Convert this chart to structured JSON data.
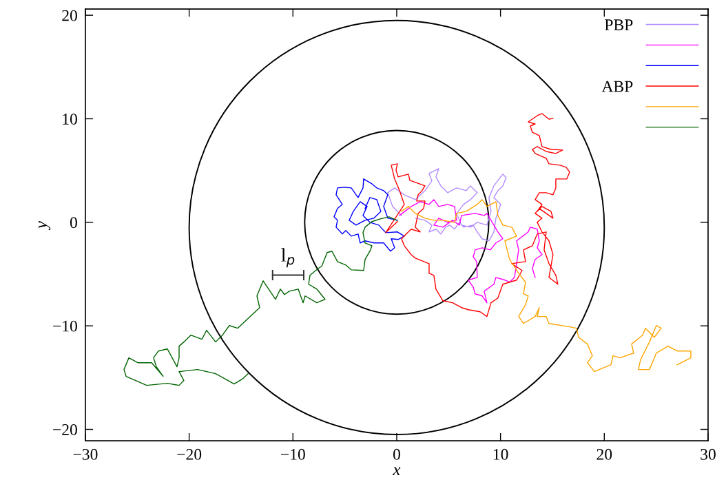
{
  "chart_data": {
    "type": "line",
    "xlabel": "x",
    "ylabel": "y",
    "xlim": [
      -30,
      30
    ],
    "ylim": [
      -21.1,
      20.6
    ],
    "xticks": [
      -30,
      -20,
      -10,
      0,
      10,
      20,
      30
    ],
    "yticks": [
      -20,
      -10,
      0,
      10,
      20
    ],
    "grid": false,
    "legend": "top right",
    "annotations": [
      {
        "text": "l$_{p}$",
        "x": -10.46,
        "y": -5.1
      }
    ],
    "series": [
      {
        "name": "PBP",
        "color": "#b28cff",
        "x": [
          0.46,
          -0.4,
          -0.86,
          -0.2,
          0.73,
          1.79,
          2.72,
          3.38,
          3.12,
          4.05,
          3.78,
          4.25,
          4.91,
          5.77,
          6.7,
          7.1,
          7.76,
          7.1,
          6.44,
          5.77,
          6.24,
          7.1,
          7.76,
          8.69,
          9.09,
          8.89,
          9.36,
          10.22,
          10.55,
          10.22,
          9.75,
          9.36,
          10.02,
          9.56,
          9.36,
          8.89,
          8.23,
          7.76,
          7.37,
          6.44,
          6.04,
          5.57,
          5.11,
          4.71,
          4.25,
          3.78,
          3.12,
          3.38,
          2.72,
          1.79
        ],
        "values": [
          0.66,
          1.53,
          2.86,
          3.32,
          2.66,
          2.19,
          3.06,
          3.99,
          4.72,
          5.18,
          4.39,
          3.52,
          2.86,
          3.32,
          3.06,
          3.52,
          2.86,
          2.19,
          1.73,
          0.86,
          -0.27,
          -0.47,
          0,
          -0.27,
          1.06,
          2.39,
          3.52,
          4.65,
          4.32,
          3.52,
          3.06,
          2.39,
          1.73,
          0.4,
          -0.93,
          -1.79,
          -1.59,
          -0.93,
          -0.27,
          -0.47,
          0,
          -0.66,
          -0.27,
          -0.47,
          -1.13,
          -0.66,
          -0.93,
          -0.27,
          0.2,
          0.4
        ]
      },
      {
        "color": "#ff00ff",
        "x": [
          0.27,
          1.39,
          2.26,
          3.12,
          3.58,
          4.05,
          4.91,
          5.57,
          5.77,
          4.91,
          4.05,
          3.58,
          4.45,
          5.38,
          6.04,
          6.24,
          7.56,
          8.43,
          8.69,
          9.36,
          9.75,
          10.22,
          9.56,
          9.02,
          8.23,
          7.56,
          7.37,
          7.7,
          7.76,
          6.9,
          7.37,
          7.56,
          8.23,
          8.69,
          8.43,
          9.36,
          9.56,
          10.42,
          10.88,
          11.35,
          11.55,
          11.75,
          11.55,
          12.67,
          12.87,
          13.54,
          13.74,
          13.54,
          14.0,
          13.34,
          13.07,
          13.34
        ],
        "values": [
          0.66,
          1.53,
          1.99,
          1.73,
          2.19,
          1.53,
          1.73,
          1.53,
          0.2,
          0,
          0.4,
          -0.27,
          -0.47,
          0.2,
          -0.27,
          0.66,
          0.86,
          0.66,
          0.86,
          -0.27,
          -0.93,
          -1.59,
          -1.99,
          -2.66,
          -2.46,
          -2.66,
          -3.32,
          -3.79,
          -5.32,
          -5.58,
          -6.25,
          -6.91,
          -7.11,
          -7.77,
          -6.65,
          -5.98,
          -5.32,
          -5.58,
          -5.78,
          -5.32,
          -3.99,
          -2.66,
          -1.79,
          -0.93,
          -0.47,
          -0.66,
          -1.79,
          -2.46,
          -3.12,
          -3.59,
          -4.45,
          -5.32
        ]
      },
      {
        "color": "#0000ff",
        "x": [
          0.07,
          -0.86,
          -1.26,
          -0.86,
          -1.26,
          -1.92,
          -2.39,
          -3.19,
          -3.25,
          -3.72,
          -4.38,
          -5.04,
          -5.71,
          -5.84,
          -5.24,
          -5.71,
          -6.04,
          -5.71,
          -5.84,
          -5.24,
          -4.91,
          -4.38,
          -3.72,
          -3.52,
          -3.05,
          -2.19,
          -1.26,
          -0.6,
          -0.2,
          -0.53,
          0.13,
          0.73,
          0.07,
          -1.06,
          -1.73,
          -2.59,
          -3.25,
          -2.85,
          -3.52,
          -4.18,
          -4.58,
          -3.92,
          -3.05,
          -2.19,
          -1.53,
          -1.92,
          -2.59,
          -3.05
        ],
        "values": [
          0.2,
          0.4,
          1.53,
          2.66,
          3.06,
          3.32,
          3.72,
          4.19,
          3.32,
          2.39,
          3.32,
          3.39,
          3.32,
          2.66,
          1.73,
          1.33,
          0.53,
          0.2,
          -0.47,
          -1.13,
          -0.8,
          -1.33,
          -1.13,
          -1.99,
          -1.79,
          -1.99,
          -1.99,
          -2.79,
          -2.46,
          -1.59,
          -1.66,
          -1.33,
          -0.93,
          -1.0,
          -0.27,
          0,
          0.66,
          1.53,
          1.99,
          1.06,
          0.2,
          -0.27,
          0.2,
          0.4,
          1.06,
          2.19,
          2.39,
          1.33
        ]
      },
      {
        "name": "ABP",
        "color": "#ff0000",
        "x": [
          0.07,
          -1.06,
          0.73,
          0.27,
          -0.2,
          -0.53,
          0.07,
          -0.07,
          0.13,
          1.13,
          1.26,
          2.72,
          2.39,
          2.06,
          1.92,
          2.72,
          2.59,
          2.06,
          1.79,
          2.26,
          1.39,
          0.46,
          0.73,
          1.39,
          1.79,
          3.12,
          3.12,
          3.58,
          3.78,
          4.45,
          5.38,
          6.24,
          6.9,
          8.03,
          8.69,
          9.09,
          9.75,
          10.22,
          11.55,
          12.08,
          11.08,
          12.41,
          12.21,
          13.07,
          13.54,
          14.4,
          14.2,
          14.67,
          15.33,
          15.53,
          14.67,
          15.06,
          14.67,
          14.0,
          13.54,
          14.0,
          13.34,
          13.74,
          15.06,
          14.86,
          14.0,
          13.54,
          14.0,
          13.34,
          13.74,
          14.4,
          15.06,
          15.33,
          15.33,
          16.39,
          16.66,
          16.32,
          15.73,
          14.67,
          14.4,
          13.34,
          13.07,
          13.54,
          14.4,
          15.33,
          15.99,
          14.86,
          14.0,
          13.74,
          13.07,
          12.87,
          13.34,
          12.67,
          13.54,
          14.0,
          14.67,
          15.06
        ],
        "values": [
          0.07,
          -1.0,
          1.73,
          3.06,
          4.19,
          5.52,
          5.65,
          5.05,
          4.39,
          4.65,
          4.05,
          3.52,
          2.99,
          2.66,
          2.06,
          2.06,
          1.33,
          0.86,
          -0.47,
          -0.93,
          -0.66,
          -1.59,
          -2.26,
          -3.12,
          -3.46,
          -3.99,
          -4.92,
          -5.12,
          -6.45,
          -7.58,
          -7.77,
          -8.24,
          -8.44,
          -8.64,
          -9.1,
          -7.77,
          -7.31,
          -5.98,
          -5.58,
          -4.65,
          -3.99,
          -3.79,
          -2.66,
          -2.26,
          -1.13,
          -0.93,
          -2.66,
          -3.99,
          -5.12,
          -5.98,
          -5.32,
          -3.12,
          -1.79,
          -0.93,
          0,
          0.4,
          0.86,
          1.33,
          0.4,
          1.06,
          1.53,
          1.06,
          1.73,
          2.19,
          2.86,
          2.86,
          2.66,
          3.32,
          4.19,
          4.19,
          4.85,
          5.32,
          5.52,
          5.65,
          6.18,
          6.65,
          7.04,
          7.31,
          6.84,
          6.65,
          6.98,
          7.04,
          7.31,
          8.37,
          8.7,
          9.3,
          9.5,
          9.7,
          10.3,
          10.5,
          9.97,
          10.03
        ]
      },
      {
        "color": "#ffa500",
        "x": [
          0.46,
          1.13,
          1.79,
          2.72,
          3.58,
          4.45,
          5.57,
          5.77,
          6.7,
          7.76,
          8.23,
          8.69,
          9.56,
          9.75,
          10.22,
          11.08,
          11.55,
          10.42,
          10.88,
          11.75,
          12.41,
          12.21,
          12.67,
          12.41,
          11.75,
          12.21,
          13.34,
          13.74,
          13.54,
          14.4,
          14.67,
          16.66,
          17.32,
          17.52,
          18.38,
          18.85,
          18.38,
          19.05,
          20.64,
          20.84,
          21.5,
          22.83,
          22.63,
          23.69,
          23.96,
          24.82,
          25.48,
          25.02,
          24.35,
          23.49,
          23.29,
          24.35,
          25.02,
          26.15,
          27.01,
          28.34,
          28.34,
          27.01
        ],
        "values": [
          1.06,
          1.53,
          0.86,
          0.4,
          0.2,
          0.2,
          0,
          0.86,
          1.06,
          1.73,
          2.19,
          1.53,
          1.99,
          0.66,
          -0.27,
          -0.47,
          -1.33,
          -1.79,
          -3.59,
          -4.92,
          -5.78,
          -6.91,
          -7.11,
          -7.97,
          -9.1,
          -9.77,
          -9.1,
          -8.24,
          -9.1,
          -9.1,
          -9.77,
          -10.1,
          -10.23,
          -11.1,
          -11.76,
          -12.89,
          -13.56,
          -14.42,
          -13.76,
          -12.89,
          -13.09,
          -12.63,
          -11.76,
          -10.9,
          -10.23,
          -11.1,
          -10.23,
          -9.97,
          -11.56,
          -13.29,
          -14.22,
          -14.22,
          -12.63,
          -11.96,
          -12.43,
          -12.43,
          -13.09,
          -13.76
        ]
      },
      {
        "color": "#006400",
        "x": [
          0,
          -0.73,
          -1.59,
          -2.39,
          -3.05,
          -3.25,
          -3.05,
          -2.39,
          -2.52,
          -3.05,
          -3.19,
          -4.38,
          -4.91,
          -5.71,
          -6.24,
          -6.7,
          -7.23,
          -7.56,
          -8.36,
          -8.49,
          -7.7,
          -6.9,
          -7.7,
          -8.83,
          -9.02,
          -9.49,
          -10.35,
          -10.82,
          -11.21,
          -11.68,
          -12.34,
          -12.87,
          -13.47,
          -13.21,
          -14.13,
          -15.33,
          -16.13,
          -16.79,
          -17.45,
          -18.32,
          -18.78,
          -19.84,
          -20.51,
          -20.97,
          -20.97,
          -21.17,
          -22.1,
          -22.96,
          -23.43,
          -23.16,
          -22.5,
          -23.62,
          -24.95,
          -25.81,
          -26.28,
          -26.08,
          -25.15,
          -24.09,
          -22.1,
          -20.97,
          -20.51,
          -20.97,
          -19.18,
          -17.45,
          -15.66,
          -14.8,
          -14.33
        ],
        "values": [
          0.2,
          0.53,
          0.33,
          0.07,
          -0.47,
          -1.0,
          -2.0,
          -2.26,
          -2.66,
          -3.59,
          -4.65,
          -4.59,
          -4.12,
          -3.79,
          -2.79,
          -2.92,
          -4.25,
          -4.45,
          -5.12,
          -5.98,
          -6.45,
          -7.44,
          -7.77,
          -7.11,
          -7.77,
          -6.45,
          -6.65,
          -6.98,
          -6.45,
          -7.44,
          -6.45,
          -5.65,
          -7.11,
          -8.24,
          -9.1,
          -10.23,
          -9.97,
          -10.9,
          -11.56,
          -10.43,
          -11.3,
          -10.9,
          -11.56,
          -11.96,
          -13.09,
          -13.95,
          -12.23,
          -12.43,
          -13.09,
          -13.95,
          -14.88,
          -13.56,
          -13.56,
          -13.09,
          -14.22,
          -14.88,
          -15.28,
          -15.75,
          -15.55,
          -15.75,
          -15.28,
          -14.42,
          -14.22,
          -14.62,
          -15.62,
          -15.08,
          -14.62
        ]
      },
      {
        "line_style": "solid",
        "color": "#333333",
        "x": [
          -11.96,
          -8.96
        ],
        "values": [
          -5.1,
          -5.1
        ],
        "errors": [
          0.5,
          0.5
        ]
      }
    ]
  }
}
